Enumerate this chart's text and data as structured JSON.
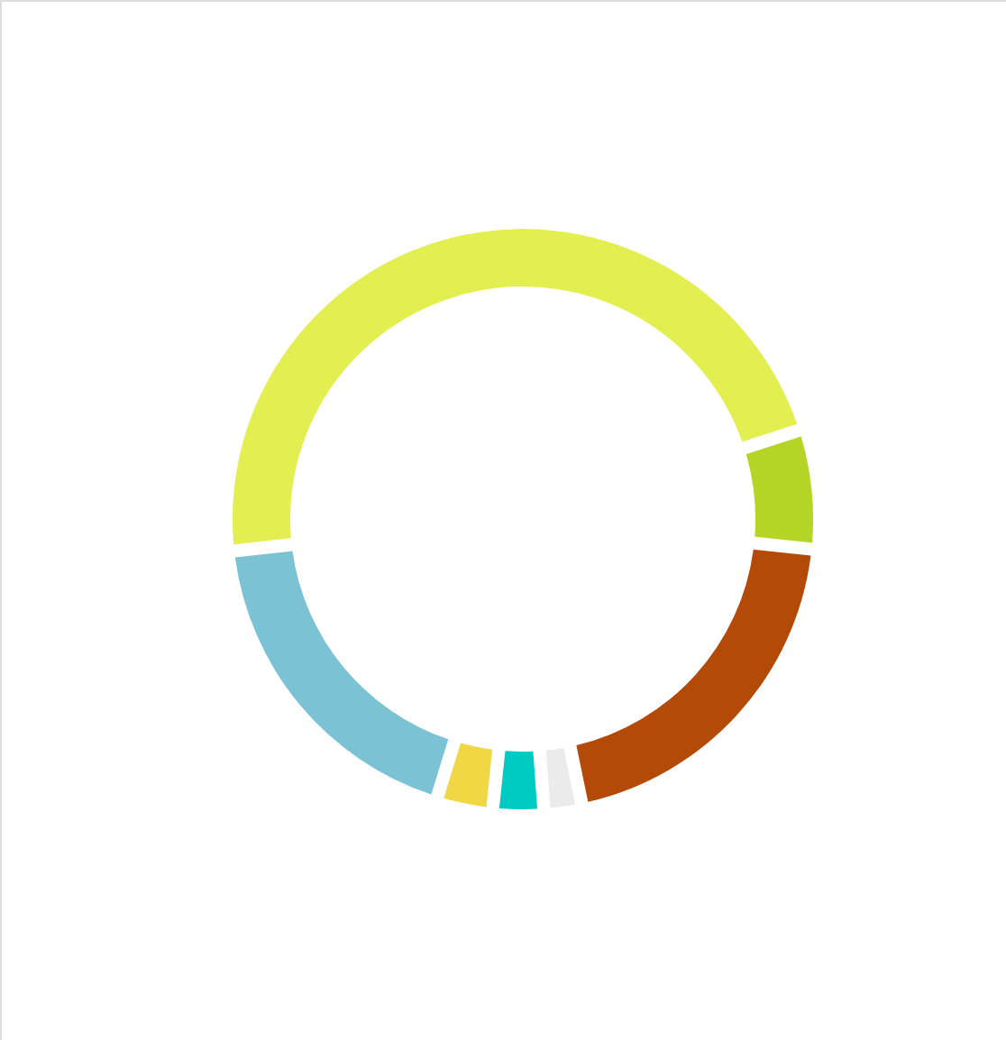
{
  "chart_data": {
    "type": "donut",
    "categories": [
      null,
      null,
      null,
      null,
      null,
      null,
      null
    ],
    "values": [
      46.8,
      6.6,
      20.1,
      2.1,
      2.8,
      3.1,
      18.5
    ],
    "colors": [
      "#e3ef50",
      "#b6d425",
      "#b34a08",
      "#ebebeb",
      "#00cbc3",
      "#f0d844",
      "#7bc3d4"
    ]
  }
}
